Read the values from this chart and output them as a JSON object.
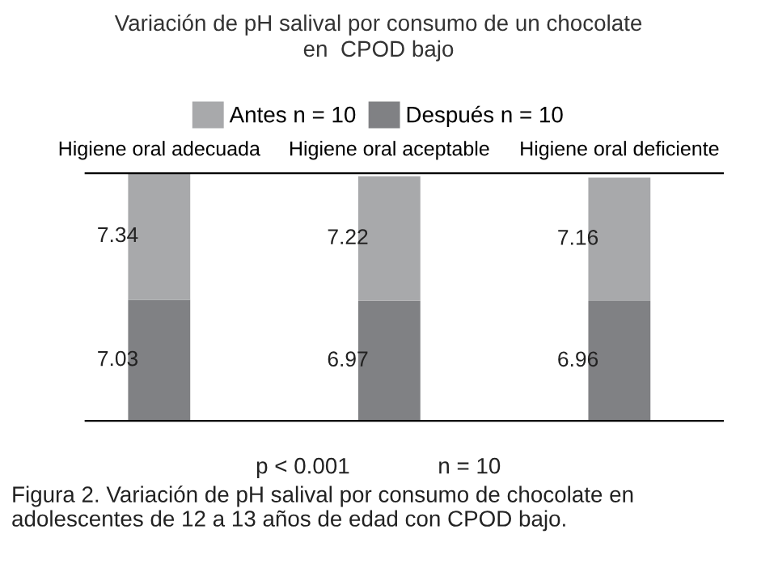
{
  "chart_data": {
    "type": "bar",
    "title": "Variación de pH salival por consumo de un chocolate\nen  CPOD bajo",
    "categories": [
      "Higiene oral adecuada",
      "Higiene oral aceptable",
      "Higiene oral deficiente"
    ],
    "stacked": true,
    "data_labels": true,
    "legend": "top",
    "grid": false,
    "series": [
      {
        "name": "Después n = 10",
        "color": "#808184",
        "values": [
          7.03,
          6.97,
          6.96
        ]
      },
      {
        "name": "Antes n = 10",
        "color": "#a8a9ab",
        "values": [
          7.34,
          7.22,
          7.16
        ]
      }
    ],
    "annotations": [
      "p < 0.001",
      "n = 10",
      "Figura 2. Variación de pH salival por consumo de chocolate en adolescentes de 12 a 13 años de edad con CPOD bajo."
    ]
  }
}
